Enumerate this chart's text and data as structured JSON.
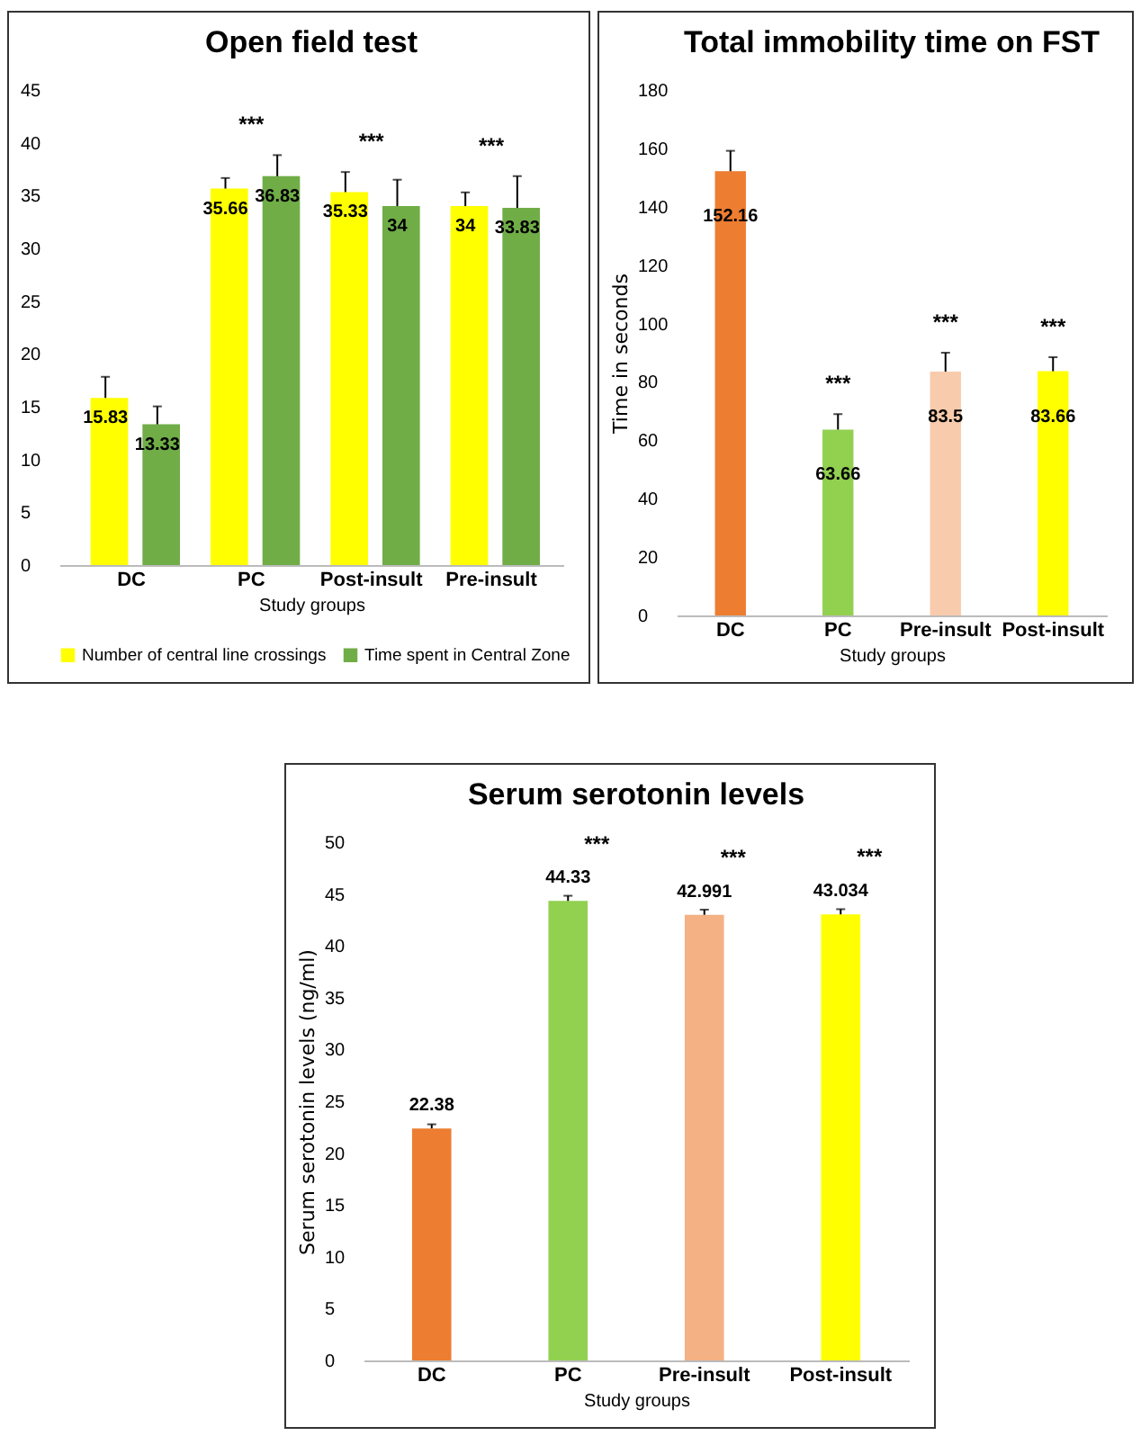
{
  "chart_data": [
    {
      "type": "bar",
      "title": "Open field test",
      "xlabel": "Study groups",
      "categories": [
        "DC",
        "PC",
        "Post-insult",
        "Pre-insult"
      ],
      "series": [
        {
          "name": "Number of central line crossings",
          "color": "#ffff00",
          "values": [
            15.83,
            35.66,
            35.33,
            34
          ],
          "errors": [
            2,
            1,
            1.9,
            1.3
          ]
        },
        {
          "name": "Time spent in Central Zone",
          "color": "#70ad47",
          "values": [
            13.33,
            36.83,
            34,
            33.83
          ],
          "errors": [
            1.7,
            2,
            2.5,
            3
          ]
        }
      ],
      "ylim": [
        0,
        45
      ],
      "yticks": [
        0,
        5,
        10,
        15,
        20,
        25,
        30,
        35,
        40,
        45
      ],
      "grid": false,
      "legend": "bottom",
      "data_labels": true,
      "annotations": [
        "***",
        "***",
        "***"
      ]
    },
    {
      "type": "bar",
      "title": "Total immobility time on FST",
      "xlabel": "Study groups",
      "ylabel": "Time in seconds",
      "categories": [
        "DC",
        "PC",
        "Pre-insult",
        "Post-insult"
      ],
      "values": [
        152.16,
        63.66,
        83.5,
        83.66
      ],
      "errors": [
        7,
        5.3,
        6.5,
        4.8
      ],
      "colors": [
        "#ed7d31",
        "#92d050",
        "#f8cbad",
        "#ffff00"
      ],
      "ylim": [
        0,
        180
      ],
      "yticks": [
        0,
        20,
        40,
        60,
        80,
        100,
        120,
        140,
        160,
        180
      ],
      "grid": false,
      "data_labels": true,
      "annotations": [
        "***",
        "***",
        "***"
      ]
    },
    {
      "type": "bar",
      "title": "Serum serotonin levels",
      "xlabel": "Study groups",
      "ylabel": "Serum serotonin levels (ng/ml)",
      "categories": [
        "DC",
        "PC",
        "Pre-insult",
        "Post-insult"
      ],
      "values": [
        22.38,
        44.33,
        42.991,
        43.034
      ],
      "errors": [
        0.4,
        0.5,
        0.5,
        0.5
      ],
      "colors": [
        "#ed7d31",
        "#92d050",
        "#f4b183",
        "#ffff00"
      ],
      "ylim": [
        0,
        50
      ],
      "yticks": [
        0,
        5,
        10,
        15,
        20,
        25,
        30,
        35,
        40,
        45,
        50
      ],
      "grid": false,
      "data_labels": true,
      "annotations": [
        "***",
        "***",
        "***"
      ]
    }
  ]
}
